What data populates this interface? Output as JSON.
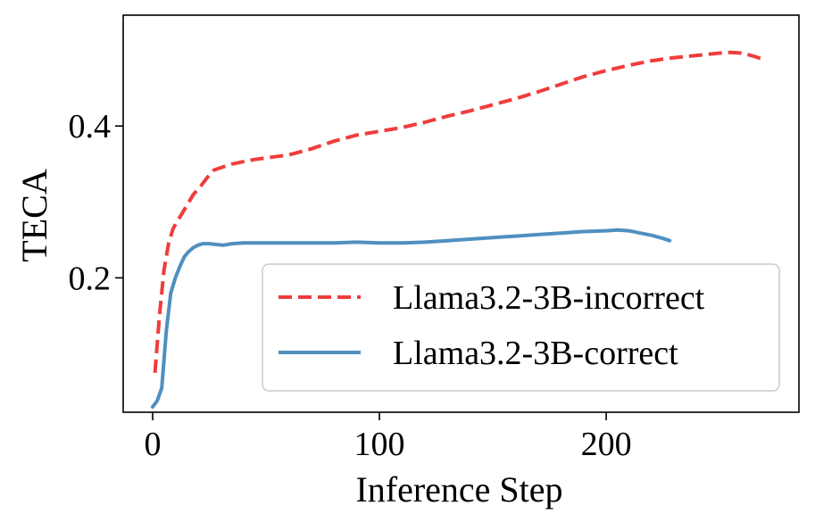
{
  "chart_data": {
    "type": "line",
    "title": "",
    "xlabel": "Inference Step",
    "ylabel": "TECA",
    "xlim": [
      -13,
      285
    ],
    "ylim": [
      0.023,
      0.546
    ],
    "xticks": [
      0,
      100,
      200
    ],
    "xtick_labels": [
      "0",
      "100",
      "200"
    ],
    "yticks": [
      0.2,
      0.4
    ],
    "ytick_labels": [
      "0.2",
      "0.4"
    ],
    "grid": false,
    "legend_position": "lower-right",
    "series": [
      {
        "name": "Llama3.2-3B-incorrect",
        "color": "#f03c3c",
        "style": "dashed",
        "x": [
          1,
          3,
          5,
          7,
          9,
          12,
          15,
          18,
          21,
          24,
          27,
          30,
          35,
          40,
          45,
          50,
          55,
          60,
          70,
          80,
          90,
          100,
          110,
          120,
          130,
          140,
          150,
          160,
          170,
          180,
          190,
          200,
          210,
          220,
          230,
          240,
          250,
          255,
          260,
          265,
          270
        ],
        "values": [
          0.075,
          0.15,
          0.21,
          0.245,
          0.265,
          0.28,
          0.295,
          0.31,
          0.32,
          0.332,
          0.342,
          0.345,
          0.35,
          0.353,
          0.356,
          0.358,
          0.36,
          0.362,
          0.37,
          0.38,
          0.388,
          0.393,
          0.398,
          0.405,
          0.413,
          0.42,
          0.428,
          0.436,
          0.445,
          0.455,
          0.465,
          0.473,
          0.48,
          0.486,
          0.49,
          0.493,
          0.496,
          0.497,
          0.496,
          0.492,
          0.487
        ]
      },
      {
        "name": "Llama3.2-3B-correct",
        "color": "#4f8fc0",
        "style": "solid",
        "x": [
          0,
          2,
          4,
          6,
          8,
          10,
          12,
          14,
          16,
          18,
          20,
          22,
          25,
          28,
          31,
          35,
          40,
          50,
          60,
          70,
          80,
          90,
          100,
          110,
          120,
          130,
          140,
          150,
          160,
          170,
          180,
          190,
          200,
          205,
          210,
          215,
          220,
          225,
          228
        ],
        "values": [
          0.03,
          0.038,
          0.055,
          0.13,
          0.18,
          0.2,
          0.215,
          0.228,
          0.235,
          0.24,
          0.243,
          0.245,
          0.245,
          0.244,
          0.243,
          0.245,
          0.246,
          0.246,
          0.246,
          0.246,
          0.246,
          0.247,
          0.246,
          0.246,
          0.247,
          0.249,
          0.251,
          0.253,
          0.255,
          0.257,
          0.259,
          0.261,
          0.262,
          0.263,
          0.262,
          0.259,
          0.256,
          0.252,
          0.249
        ]
      }
    ]
  }
}
